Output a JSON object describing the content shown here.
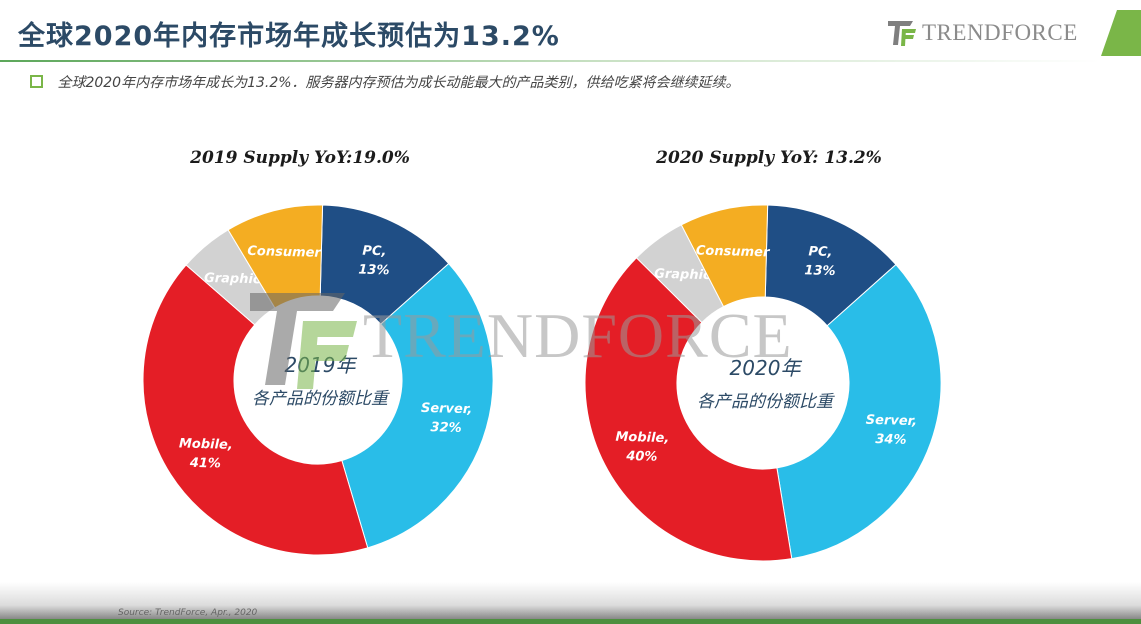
{
  "page": {
    "title": "全球2020年内存市场年成长预估为13.2%",
    "subtitle": "全球2020年内存市场年成长为13.2%．服务器内存预估为成长动能最大的产品类别，供给吃紧将会继续延续。",
    "logo_text": "TRENDFORCE",
    "watermark_text": "TRENDFORCE",
    "source": "Source: TrendForce, Apr., 2020",
    "colors": {
      "title": "#2c4a66",
      "accent_green": "#7ab648"
    }
  },
  "chart_data": [
    {
      "type": "pie",
      "title": "2019 Supply YoY:19.0%",
      "center_label": [
        "2019年",
        "各产品的份额比重"
      ],
      "slices": [
        {
          "label": "PC,",
          "value": 13,
          "value_label": "13%",
          "color": "#1f4e85"
        },
        {
          "label": "Server,",
          "value": 32,
          "value_label": "32%",
          "color": "#29bde8"
        },
        {
          "label": "Mobile,",
          "value": 41,
          "value_label": "41%",
          "color": "#e41e26"
        },
        {
          "label": "Graphic",
          "value": 5,
          "value_label": "",
          "color": "#d2d2d2"
        },
        {
          "label": "Consumer",
          "value": 9,
          "value_label": "",
          "color": "#f4ad22"
        }
      ]
    },
    {
      "type": "pie",
      "title": "2020 Supply YoY: 13.2%",
      "center_label": [
        "2020年",
        "各产品的份额比重"
      ],
      "slices": [
        {
          "label": "PC,",
          "value": 13,
          "value_label": "13%",
          "color": "#1f4e85"
        },
        {
          "label": "Server,",
          "value": 34,
          "value_label": "34%",
          "color": "#29bde8"
        },
        {
          "label": "Mobile,",
          "value": 40,
          "value_label": "40%",
          "color": "#e41e26"
        },
        {
          "label": "Graphic",
          "value": 5,
          "value_label": "",
          "color": "#d2d2d2"
        },
        {
          "label": "Consumer",
          "value": 8,
          "value_label": "",
          "color": "#f4ad22"
        }
      ]
    }
  ]
}
